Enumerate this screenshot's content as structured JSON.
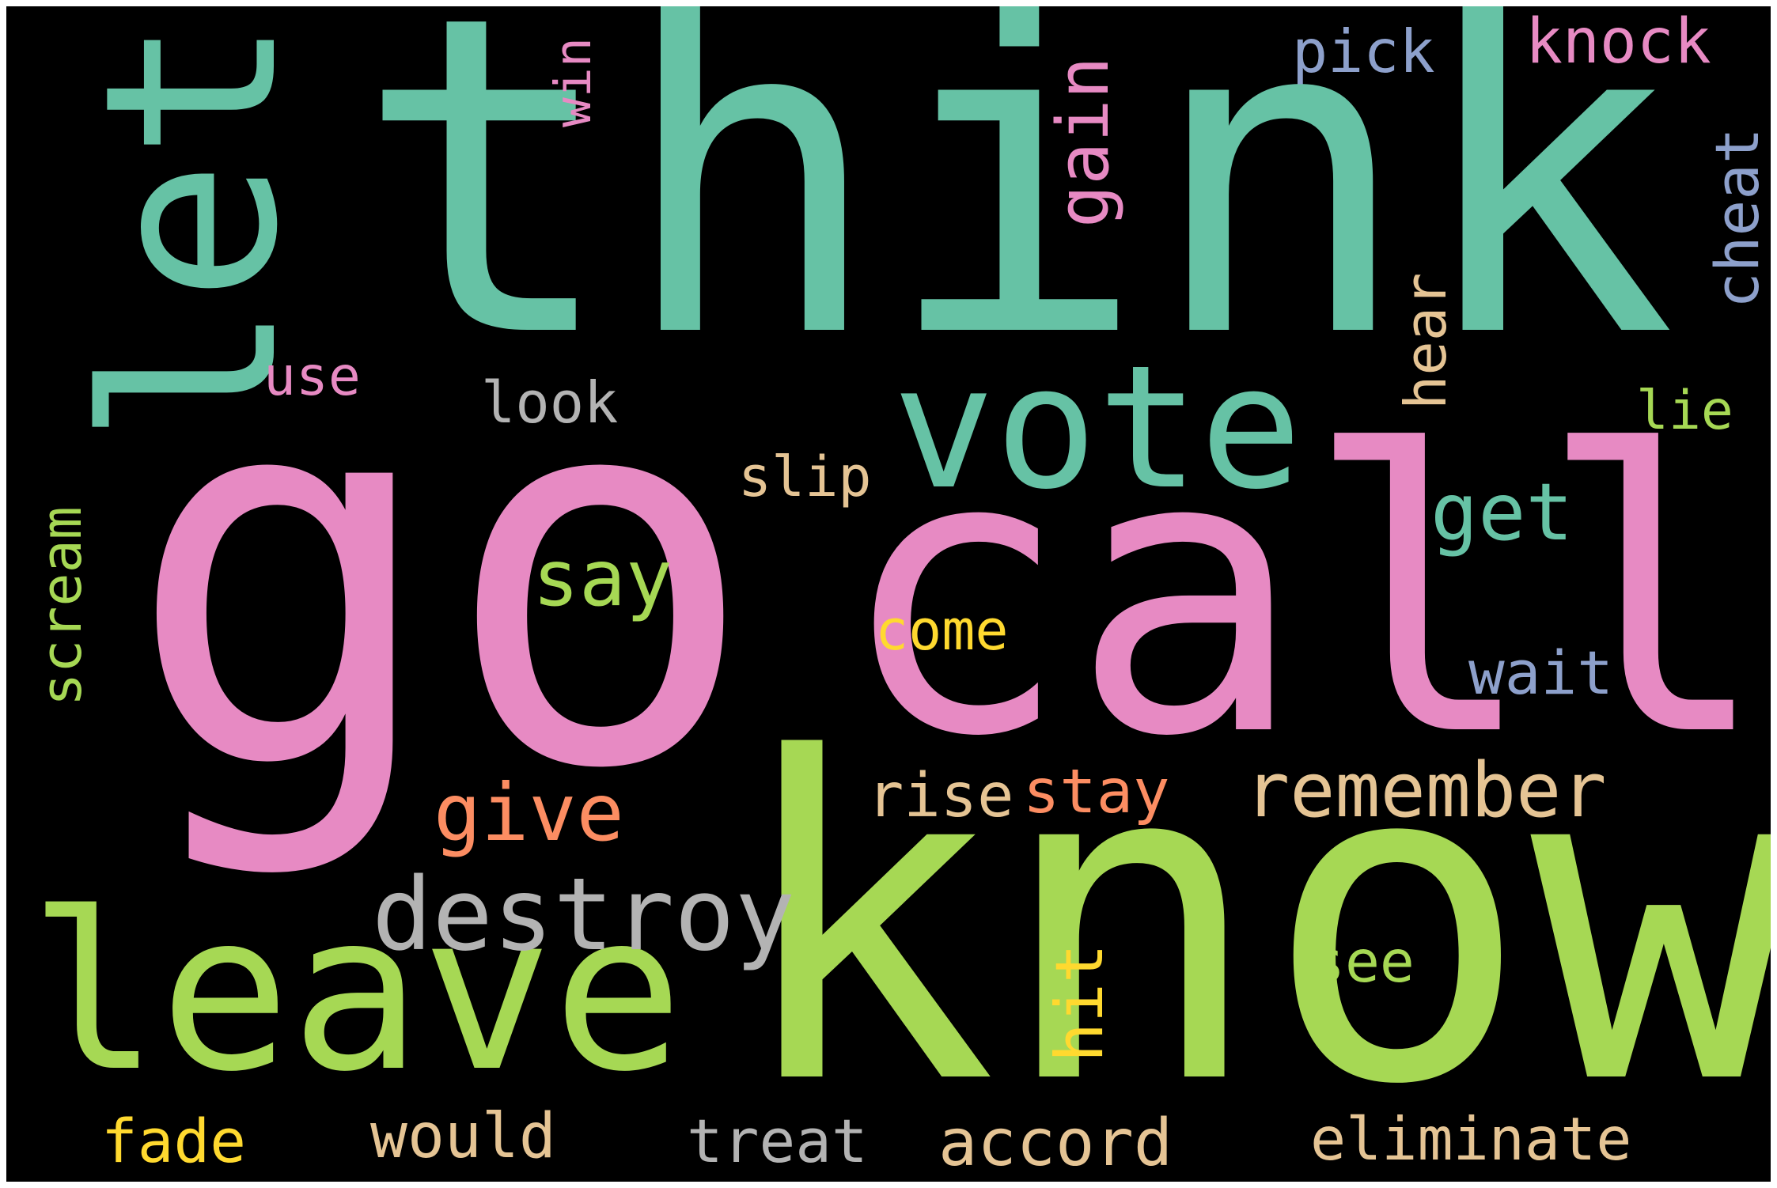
{
  "palette": {
    "teal": "#66c2a5",
    "pink": "#e78ac3",
    "green": "#a6d854",
    "blue": "#8da0cb",
    "orange": "#fc8d62",
    "yellow": "#ffd92f",
    "tan": "#e5c494",
    "gray": "#b3b3b3",
    "background": "#000000"
  },
  "words": [
    {
      "text": "think",
      "color": "#66c2a5"
    },
    {
      "text": "go",
      "color": "#e78ac3"
    },
    {
      "text": "call",
      "color": "#e78ac3"
    },
    {
      "text": "know",
      "color": "#a6d854"
    },
    {
      "text": "let",
      "color": "#66c2a5"
    },
    {
      "text": "vote",
      "color": "#66c2a5"
    },
    {
      "text": "leave",
      "color": "#a6d854"
    },
    {
      "text": "remember",
      "color": "#e5c494"
    },
    {
      "text": "destroy",
      "color": "#b3b3b3"
    },
    {
      "text": "give",
      "color": "#fc8d62"
    },
    {
      "text": "say",
      "color": "#a6d854"
    },
    {
      "text": "get",
      "color": "#66c2a5"
    },
    {
      "text": "gain",
      "color": "#e78ac3"
    },
    {
      "text": "cheat",
      "color": "#8da0cb"
    },
    {
      "text": "hear",
      "color": "#e5c494"
    },
    {
      "text": "scream",
      "color": "#a6d854"
    },
    {
      "text": "hit",
      "color": "#ffd92f"
    },
    {
      "text": "win",
      "color": "#e78ac3"
    },
    {
      "text": "knock",
      "color": "#e78ac3"
    },
    {
      "text": "pick",
      "color": "#8da0cb"
    },
    {
      "text": "use",
      "color": "#e78ac3"
    },
    {
      "text": "look",
      "color": "#b3b3b3"
    },
    {
      "text": "lie",
      "color": "#a6d854"
    },
    {
      "text": "slip",
      "color": "#e5c494"
    },
    {
      "text": "come",
      "color": "#ffd92f"
    },
    {
      "text": "wait",
      "color": "#8da0cb"
    },
    {
      "text": "rise",
      "color": "#e5c494"
    },
    {
      "text": "stay",
      "color": "#fc8d62"
    },
    {
      "text": "see",
      "color": "#a6d854"
    },
    {
      "text": "fade",
      "color": "#ffd92f"
    },
    {
      "text": "would",
      "color": "#e5c494"
    },
    {
      "text": "treat",
      "color": "#b3b3b3"
    },
    {
      "text": "accord",
      "color": "#e5c494"
    },
    {
      "text": "eliminate",
      "color": "#e5c494"
    }
  ]
}
